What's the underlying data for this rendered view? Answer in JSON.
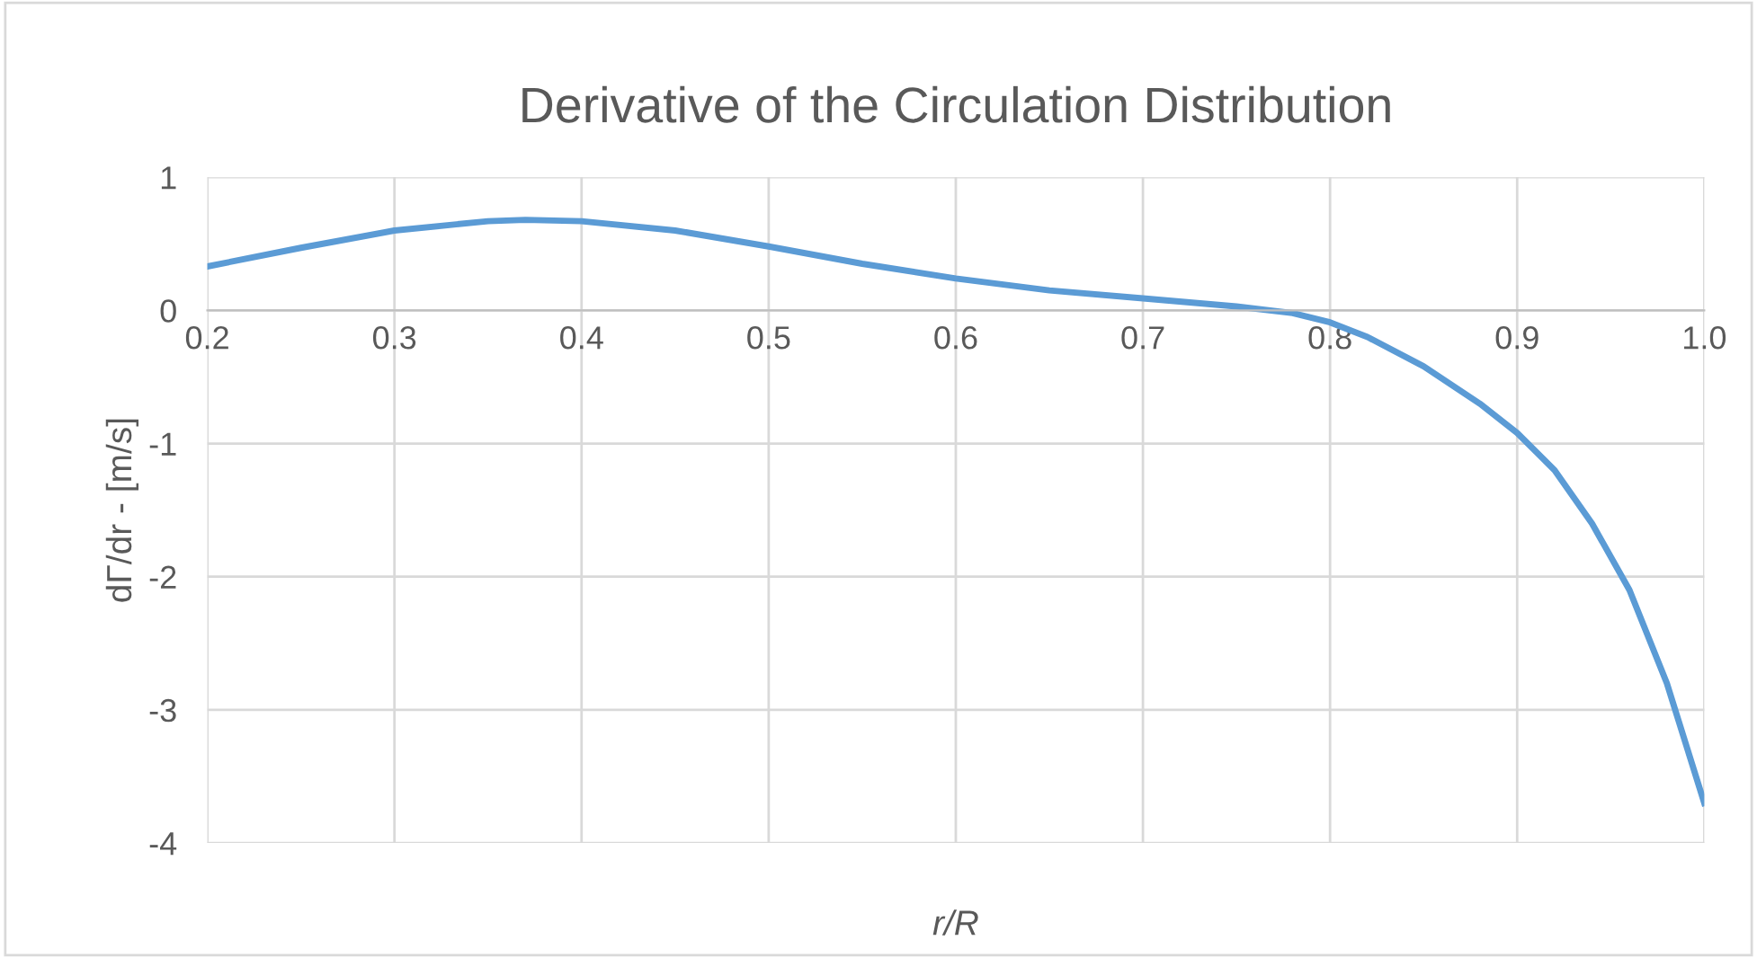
{
  "chart_data": {
    "type": "line",
    "title": "Derivative of the Circulation Distribution",
    "xlabel": "r/R",
    "ylabel": "dΓ/dr - [m/s]",
    "x": [
      0.2,
      0.25,
      0.3,
      0.35,
      0.37,
      0.4,
      0.45,
      0.5,
      0.55,
      0.6,
      0.65,
      0.7,
      0.75,
      0.78,
      0.8,
      0.82,
      0.85,
      0.88,
      0.9,
      0.92,
      0.94,
      0.96,
      0.98,
      1.0
    ],
    "series": [
      {
        "color": "#5b9bd5",
        "values": [
          0.33,
          0.47,
          0.6,
          0.67,
          0.68,
          0.67,
          0.6,
          0.48,
          0.35,
          0.24,
          0.15,
          0.09,
          0.03,
          -0.02,
          -0.09,
          -0.2,
          -0.42,
          -0.7,
          -0.92,
          -1.2,
          -1.6,
          -2.1,
          -2.8,
          -3.7
        ]
      }
    ],
    "xlim": [
      0.2,
      1.0
    ],
    "ylim": [
      -4,
      1
    ],
    "xticks": [
      0.2,
      0.3,
      0.4,
      0.5,
      0.6,
      0.7,
      0.8,
      0.9,
      {
        "value": 1.0,
        "label": "1.0"
      }
    ],
    "yticks": [
      -4,
      -3,
      -2,
      -1,
      0,
      1
    ],
    "grid": true,
    "legend": false,
    "marker": "none",
    "line_style": "solid"
  }
}
